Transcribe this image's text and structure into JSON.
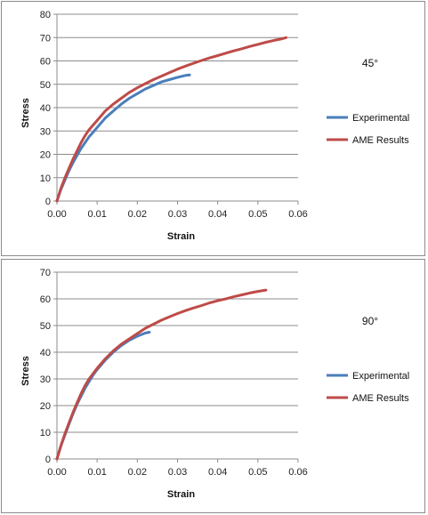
{
  "chart_data": [
    {
      "type": "line",
      "title": "",
      "annotation": "45°",
      "xlabel": "Strain",
      "ylabel": "Stress",
      "xlim": [
        0,
        0.06
      ],
      "ylim": [
        0,
        80
      ],
      "xticks": [
        "0.00",
        "0.01",
        "0.02",
        "0.03",
        "0.04",
        "0.05",
        "0.06"
      ],
      "yticks": [
        "0",
        "10",
        "20",
        "30",
        "40",
        "50",
        "60",
        "70",
        "80"
      ],
      "grid": "horizontal",
      "legend": "right",
      "series": [
        {
          "name": "Experimental",
          "color": "#4a7ebb",
          "x": [
            0,
            0.001,
            0.002,
            0.003,
            0.004,
            0.005,
            0.006,
            0.007,
            0.008,
            0.009,
            0.01,
            0.012,
            0.014,
            0.016,
            0.018,
            0.02,
            0.022,
            0.024,
            0.026,
            0.028,
            0.03,
            0.032,
            0.033
          ],
          "y": [
            0,
            5,
            9,
            13,
            16.5,
            19.5,
            22.5,
            25,
            27.5,
            29.5,
            31.5,
            35.5,
            38.5,
            41.5,
            44,
            46,
            48,
            49.5,
            51,
            52,
            53,
            53.8,
            54
          ]
        },
        {
          "name": "AME Results",
          "color": "#be4b48",
          "x": [
            0,
            0.001,
            0.002,
            0.003,
            0.004,
            0.005,
            0.006,
            0.007,
            0.008,
            0.01,
            0.012,
            0.014,
            0.016,
            0.018,
            0.02,
            0.022,
            0.024,
            0.026,
            0.028,
            0.03,
            0.032,
            0.034,
            0.036,
            0.038,
            0.04,
            0.042,
            0.044,
            0.046,
            0.048,
            0.05,
            0.052,
            0.054,
            0.056,
            0.057
          ],
          "y": [
            0,
            5.5,
            10,
            14,
            18,
            21.5,
            25,
            28,
            30.5,
            34.5,
            38.5,
            41.5,
            44,
            46.5,
            48.5,
            50.3,
            52,
            53.5,
            55,
            56.5,
            57.8,
            59,
            60.2,
            61.3,
            62.3,
            63.3,
            64.3,
            65.2,
            66.2,
            67.1,
            68,
            68.8,
            69.5,
            70
          ]
        }
      ]
    },
    {
      "type": "line",
      "title": "",
      "annotation": "90°",
      "xlabel": "Strain",
      "ylabel": "Stress",
      "xlim": [
        0,
        0.06
      ],
      "ylim": [
        0,
        70
      ],
      "xticks": [
        "0.00",
        "0.01",
        "0.02",
        "0.03",
        "0.04",
        "0.05",
        "0.06"
      ],
      "yticks": [
        "0",
        "10",
        "20",
        "30",
        "40",
        "50",
        "60",
        "70"
      ],
      "grid": "horizontal",
      "legend": "right",
      "series": [
        {
          "name": "Experimental",
          "color": "#4a7ebb",
          "x": [
            0,
            0.001,
            0.002,
            0.003,
            0.004,
            0.005,
            0.006,
            0.007,
            0.008,
            0.009,
            0.01,
            0.012,
            0.014,
            0.016,
            0.018,
            0.02,
            0.022,
            0.023
          ],
          "y": [
            0,
            5,
            9,
            13,
            17,
            20.5,
            23.5,
            26.5,
            29,
            31.5,
            33.5,
            37,
            40,
            42.5,
            44.5,
            46,
            47.2,
            47.5
          ]
        },
        {
          "name": "AME Results",
          "color": "#be4b48",
          "x": [
            0,
            0.001,
            0.002,
            0.003,
            0.004,
            0.005,
            0.006,
            0.007,
            0.008,
            0.01,
            0.012,
            0.014,
            0.016,
            0.018,
            0.02,
            0.022,
            0.024,
            0.026,
            0.028,
            0.03,
            0.032,
            0.034,
            0.036,
            0.038,
            0.04,
            0.042,
            0.044,
            0.046,
            0.048,
            0.05,
            0.052
          ],
          "y": [
            0,
            5,
            9.5,
            13.5,
            17.5,
            21,
            24.5,
            27.5,
            30,
            34,
            37.5,
            40.5,
            43,
            45,
            47,
            49,
            50.5,
            52,
            53.3,
            54.5,
            55.6,
            56.6,
            57.5,
            58.5,
            59.3,
            60,
            60.8,
            61.5,
            62.2,
            62.8,
            63.3
          ]
        }
      ]
    }
  ]
}
